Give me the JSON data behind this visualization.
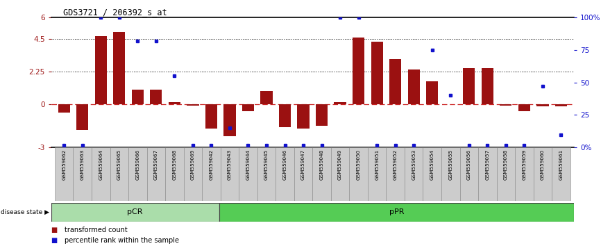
{
  "title": "GDS3721 / 206392_s_at",
  "samples": [
    "GSM559062",
    "GSM559063",
    "GSM559064",
    "GSM559065",
    "GSM559066",
    "GSM559067",
    "GSM559068",
    "GSM559069",
    "GSM559042",
    "GSM559043",
    "GSM559044",
    "GSM559045",
    "GSM559046",
    "GSM559047",
    "GSM559048",
    "GSM559049",
    "GSM559050",
    "GSM559051",
    "GSM559052",
    "GSM559053",
    "GSM559054",
    "GSM559055",
    "GSM559056",
    "GSM559057",
    "GSM559058",
    "GSM559059",
    "GSM559060",
    "GSM559061"
  ],
  "transformed_count": [
    -0.6,
    -1.8,
    4.7,
    5.0,
    1.0,
    1.0,
    0.15,
    -0.1,
    -1.7,
    -2.2,
    -0.5,
    0.9,
    -1.6,
    -1.7,
    -1.5,
    0.15,
    4.6,
    4.3,
    3.1,
    2.4,
    1.6,
    0.0,
    2.5,
    2.5,
    -0.1,
    -0.5,
    -0.15,
    -0.15
  ],
  "percentile_rank": [
    2,
    2,
    100,
    100,
    82,
    82,
    55,
    2,
    2,
    15,
    2,
    2,
    2,
    2,
    2,
    100,
    100,
    2,
    2,
    2,
    75,
    40,
    2,
    2,
    2,
    2,
    47,
    10
  ],
  "pCR_count": 9,
  "pPR_count": 19,
  "ylim_left": [
    -3,
    6
  ],
  "ylim_right": [
    0,
    100
  ],
  "yticks_left": [
    -3,
    0,
    2.25,
    4.5,
    6
  ],
  "ytick_labels_left": [
    "-3",
    "0",
    "2.25",
    "4.5",
    "6"
  ],
  "yticks_right": [
    0,
    25,
    50,
    75,
    100
  ],
  "ytick_labels_right": [
    "0%",
    "25",
    "50",
    "75",
    "100%"
  ],
  "bar_color": "#9B1111",
  "dot_color": "#1111CC",
  "zero_line_color": "#CC2222",
  "pCR_color": "#AADDAA",
  "pPR_color": "#55CC55",
  "label_transformed": "transformed count",
  "label_percentile": "percentile rank within the sample"
}
